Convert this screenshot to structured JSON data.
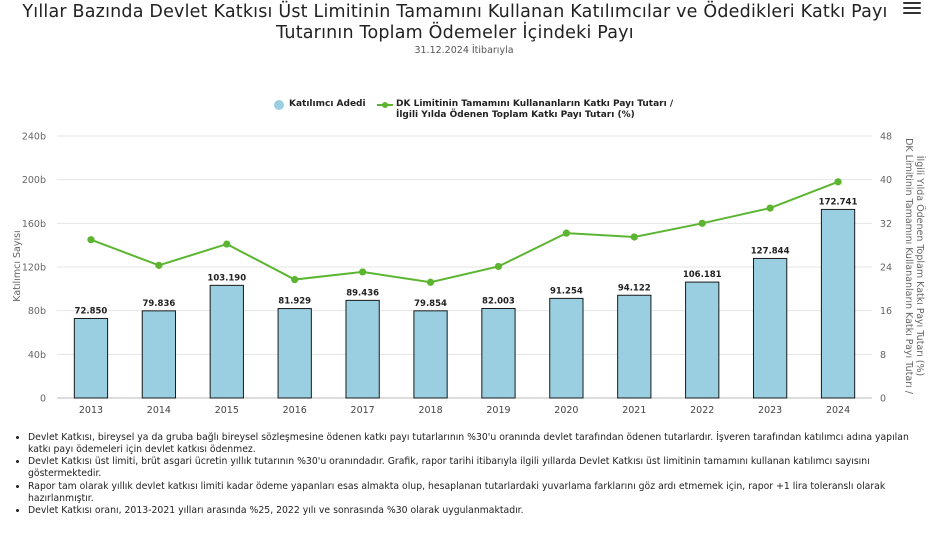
{
  "header": {
    "title": "Yıllar Bazında Devlet Katkısı Üst Limitinin Tamamını Kullanan Katılımcılar ve Ödedikleri Katkı Payı Tutarının Toplam Ödemeler İçindeki Payı",
    "subtitle": "31.12.2024 İtibarıyla",
    "menu_icon": "hamburger-menu-icon"
  },
  "legend": {
    "bar_label": "Katılımcı Adedi",
    "line_label_1": "DK Limitinin Tamamını Kullananların Katkı Payı Tutarı /",
    "line_label_2": "İlgili Yılda Ödenen Toplam Katkı Payı Tutarı (%)"
  },
  "colors": {
    "bar_fill": "#99cfe0",
    "bar_stroke": "#1a1a1a",
    "line": "#5cb531",
    "grid": "#e6e6e6"
  },
  "chart_data": {
    "type": "bar+line",
    "categories": [
      "2013",
      "2014",
      "2015",
      "2016",
      "2017",
      "2018",
      "2019",
      "2020",
      "2021",
      "2022",
      "2023",
      "2024"
    ],
    "series": [
      {
        "name": "Katılımcı Adedi",
        "type": "bar",
        "axis": "left",
        "values": [
          72850,
          79836,
          103190,
          81929,
          89436,
          79854,
          82003,
          91254,
          94122,
          106181,
          127844,
          172741
        ],
        "labels": [
          "72.850",
          "79.836",
          "103.190",
          "81.929",
          "89.436",
          "79.854",
          "82.003",
          "91.254",
          "94.122",
          "106.181",
          "127.844",
          "172.741"
        ]
      },
      {
        "name": "DK Limitinin Tamamını Kullananların Katkı Payı Tutarı / İlgili Yılda Ödenen Toplam Katkı Payı Tutarı (%)",
        "type": "line",
        "axis": "right",
        "values": [
          29.0,
          24.3,
          28.2,
          21.7,
          23.1,
          21.2,
          24.1,
          30.2,
          29.5,
          32.0,
          34.8,
          39.6
        ]
      }
    ],
    "y_left": {
      "label": "Katılımcı Sayısı",
      "range": [
        0,
        240000
      ],
      "ticks": [
        0,
        40000,
        80000,
        120000,
        160000,
        200000,
        240000
      ],
      "tick_labels": [
        "0",
        "40b",
        "80b",
        "120b",
        "160b",
        "200b",
        "240b"
      ]
    },
    "y_right": {
      "label_1": "DK Limitinin Tamamını Kullananların Katkı Payı Tutarı /",
      "label_2": "İlgili Yılda Ödenen Toplam Katkı Payı Tutarı (%)",
      "range": [
        0,
        48
      ],
      "ticks": [
        0,
        8,
        16,
        24,
        32,
        40,
        48
      ],
      "tick_labels": [
        "0",
        "8",
        "16",
        "24",
        "32",
        "40",
        "48"
      ]
    }
  },
  "notes": [
    "Devlet Katkısı, bireysel ya da gruba bağlı bireysel sözleşmesine ödenen katkı payı tutarlarının %30'u oranında devlet tarafından ödenen tutarlardır. İşveren tarafından katılımcı adına yapılan katkı payı ödemeleri için devlet katkısı ödenmez.",
    "Devlet Katkısı üst limiti, brüt asgari ücretin yıllık tutarının %30'u oranındadır. Grafik, rapor tarihi itibarıyla ilgili yıllarda Devlet Katkısı üst limitinin tamamını kullanan katılımcı sayısını göstermektedir.",
    "Rapor tam olarak yıllık devlet katkısı limiti kadar ödeme yapanları esas almakta olup, hesaplanan tutarlardaki yuvarlama farklarını göz ardı etmemek için, rapor +1 lira toleranslı olarak hazırlanmıştır.",
    "Devlet Katkısı oranı, 2013-2021 yılları arasında %25, 2022 yılı ve sonrasında %30 olarak uygulanmaktadır."
  ]
}
